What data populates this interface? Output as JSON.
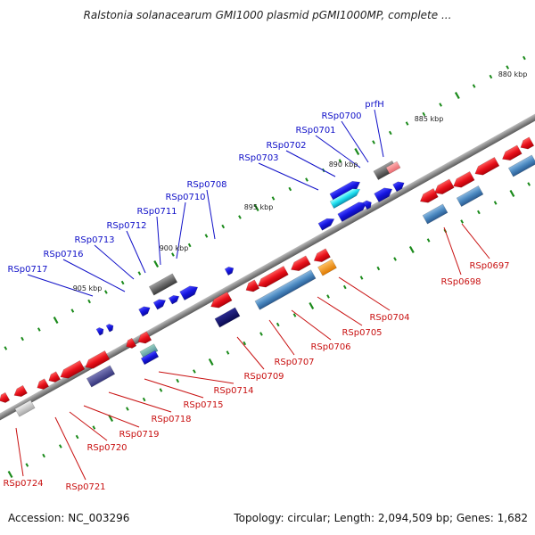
{
  "title": "Ralstonia solanacearum GMI1000 plasmid pGMI1000MP, complete ...",
  "footer": {
    "accession": "Accession: NC_003296",
    "summary": "Topology: circular; Length: 2,094,509 bp; Genes: 1,682"
  },
  "colors": {
    "forward_gene": "#1515e0",
    "reverse_gene": "#e8101a",
    "backbone": "#8a8a8a",
    "tick": "#1a8a1a",
    "forward_label": "#1010c8",
    "reverse_label": "#c81010"
  },
  "scale_labels": [
    "880 kbp",
    "885 kbp",
    "890 kbp",
    "895 kbp",
    "900 kbp",
    "905 kbp"
  ],
  "forward_genes": [
    "prfH",
    "RSp0700",
    "RSp0701",
    "RSp0702",
    "RSp0703",
    "RSp0708",
    "RSp0710",
    "RSp0711",
    "RSp0712",
    "RSp0713",
    "RSp0716",
    "RSp0717"
  ],
  "reverse_genes": [
    "RSp0697",
    "RSp0698",
    "RSp0704",
    "RSp0705",
    "RSp0706",
    "RSp0707",
    "RSp0709",
    "RSp0714",
    "RSp0715",
    "RSp0718",
    "RSp0719",
    "RSp0720",
    "RSp0721",
    "RSp0724"
  ]
}
